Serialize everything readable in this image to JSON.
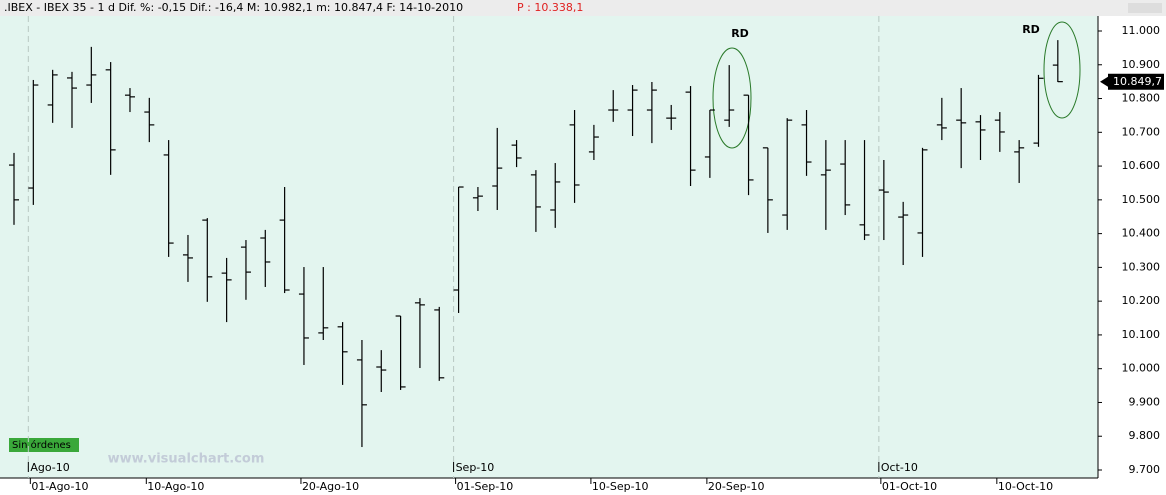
{
  "chart_data": {
    "type": "ohlc",
    "header": ".IBEX - IBEX 35 -  1 d Dif. %: -0,15 Dif.: -16,4 M: 10.982,1 m: 10.847,4 F: 14-10-2010",
    "header_price": "P : 10.338,1",
    "last_price": {
      "value": 10849.7,
      "label": "10.849,7"
    },
    "status": "Sin órdenes",
    "watermark": "www.visualchart.com",
    "annotations": [
      "RD",
      "RD"
    ],
    "color": "#000000",
    "categories": [
      null,
      "01-Ago-10",
      null,
      null,
      null,
      null,
      null,
      "10-Ago-10",
      null,
      null,
      null,
      null,
      null,
      null,
      null,
      "20-Ago-10",
      null,
      null,
      null,
      null,
      null,
      null,
      null,
      "01-Sep-10",
      null,
      null,
      null,
      null,
      null,
      null,
      "10-Sep-10",
      null,
      null,
      null,
      null,
      null,
      "20-Sep-10",
      null,
      null,
      null,
      null,
      null,
      null,
      null,
      null,
      "01-Oct-10",
      null,
      null,
      null,
      null,
      null,
      "10-Oct-10",
      null,
      null,
      null
    ],
    "months": [
      null,
      "Ago-10",
      null,
      null,
      null,
      null,
      null,
      null,
      null,
      null,
      null,
      null,
      null,
      null,
      null,
      null,
      null,
      null,
      null,
      null,
      null,
      null,
      null,
      "Sep-10",
      null,
      null,
      null,
      null,
      null,
      null,
      null,
      null,
      null,
      null,
      null,
      null,
      null,
      null,
      null,
      null,
      null,
      null,
      null,
      null,
      null,
      "Oct-10",
      null,
      null,
      null,
      null,
      null,
      null,
      null,
      null,
      null
    ],
    "open": [
      10603,
      10535,
      10781,
      10861,
      10840,
      10885,
      10810,
      10760,
      10633,
      10337,
      10440,
      10283,
      10360,
      10387,
      10440,
      10221,
      10106,
      10124,
      10026,
      10005,
      10156,
      10195,
      10174,
      10233,
      10506,
      10541,
      10662,
      10574,
      10470,
      10722,
      10642,
      10766,
      10766,
      10766,
      10742,
      10819,
      10627,
      10736,
      10810,
      10654,
      10455,
      10722,
      10574,
      10606,
      10426,
      10529,
      10449,
      10402,
      10722,
      10736,
      10731,
      10736,
      10642,
      10668,
      10899
    ],
    "high": [
      10639,
      10855,
      10885,
      10879,
      10953,
      10908,
      10831,
      10802,
      10677,
      10396,
      10446,
      10328,
      10381,
      10411,
      10538,
      10301,
      10301,
      10138,
      10085,
      10055,
      10156,
      10209,
      10183,
      10538,
      10538,
      10713,
      10677,
      10588,
      10609,
      10766,
      10722,
      10825,
      10840,
      10849,
      10781,
      10837,
      10766,
      10899,
      10810,
      10654,
      10742,
      10766,
      10677,
      10677,
      10677,
      10618,
      10494,
      10654,
      10802,
      10831,
      10751,
      10760,
      10677,
      10870,
      10973
    ],
    "low": [
      10426,
      10485,
      10728,
      10713,
      10787,
      10574,
      10760,
      10671,
      10331,
      10257,
      10198,
      10138,
      10204,
      10242,
      10224,
      10011,
      10085,
      9952,
      9768,
      9931,
      9937,
      10002,
      9964,
      10165,
      10467,
      10470,
      10597,
      10405,
      10417,
      10491,
      10618,
      10731,
      10689,
      10668,
      10707,
      10541,
      10565,
      10716,
      10514,
      10402,
      10411,
      10571,
      10411,
      10455,
      10381,
      10381,
      10307,
      10331,
      10677,
      10594,
      10618,
      10642,
      10550,
      10657,
      10849
    ],
    "close": [
      10500,
      10840,
      10870,
      10831,
      10870,
      10648,
      10805,
      10722,
      10372,
      10328,
      10272,
      10263,
      10286,
      10316,
      10233,
      10091,
      10121,
      10050,
      9893,
      9996,
      9946,
      10189,
      9973,
      10538,
      10511,
      10594,
      10624,
      10479,
      10553,
      10544,
      10686,
      10766,
      10825,
      10825,
      10742,
      10588,
      10766,
      10766,
      10559,
      10500,
      10736,
      10612,
      10588,
      10485,
      10396,
      10523,
      10455,
      10648,
      10713,
      10728,
      10707,
      10701,
      10654,
      10860,
      10850
    ],
    "ylim": [
      9700,
      11000
    ],
    "yticks": [
      {
        "value": 9700,
        "label": "9.700"
      },
      {
        "value": 9800,
        "label": "9.800"
      },
      {
        "value": 9900,
        "label": "9.900"
      },
      {
        "value": 10000,
        "label": "10.000"
      },
      {
        "value": 10100,
        "label": "10.100"
      },
      {
        "value": 10200,
        "label": "10.200"
      },
      {
        "value": 10300,
        "label": "10.300"
      },
      {
        "value": 10400,
        "label": "10.400"
      },
      {
        "value": 10500,
        "label": "10.500"
      },
      {
        "value": 10600,
        "label": "10.600"
      },
      {
        "value": 10700,
        "label": "10.700"
      },
      {
        "value": 10800,
        "label": "10.800"
      },
      {
        "value": 10900,
        "label": "10.900"
      },
      {
        "value": 11000,
        "label": "11.000"
      }
    ]
  }
}
